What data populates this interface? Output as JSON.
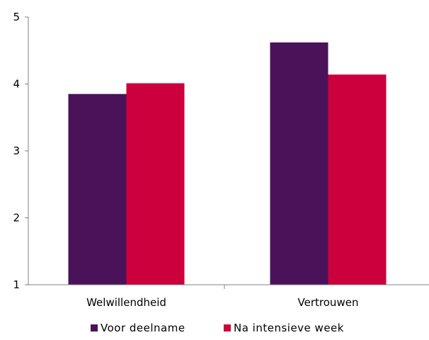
{
  "chart_data": {
    "type": "bar",
    "title": "",
    "xlabel": "",
    "ylabel": "",
    "ylim": [
      1,
      5
    ],
    "yticks": [
      "1",
      "2",
      "3",
      "4",
      "5"
    ],
    "categories": [
      "Welwillendheid",
      "Vertrouwen"
    ],
    "series": [
      {
        "name": "Voor deelname",
        "values": [
          3.85,
          4.62
        ],
        "color": "#4a1259"
      },
      {
        "name": "Na intensieve week",
        "values": [
          4.01,
          4.14
        ],
        "color": "#cc003c"
      }
    ],
    "grid": false,
    "legend": "bottom"
  }
}
